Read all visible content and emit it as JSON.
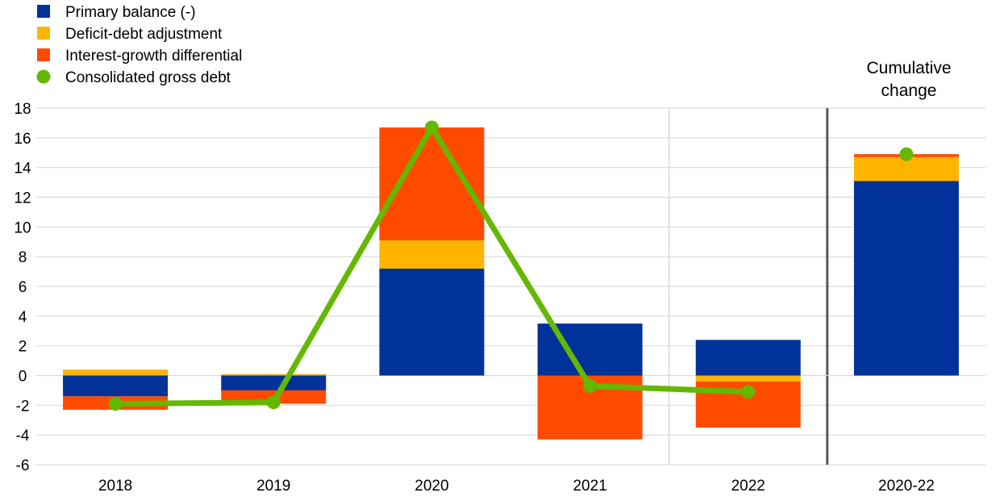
{
  "chart_data": {
    "type": "bar",
    "stacked": true,
    "categories": [
      "2018",
      "2019",
      "2020",
      "2021",
      "2022",
      "2020-22"
    ],
    "yticks": [
      "-6",
      "-4",
      "-2",
      "0",
      "2",
      "4",
      "6",
      "8",
      "10",
      "12",
      "14",
      "16",
      "18"
    ],
    "ylim": [
      -6,
      18
    ],
    "series": [
      {
        "name": "Primary balance (-)",
        "type": "bar",
        "color": "#003299",
        "values": [
          -1.4,
          -1.0,
          7.2,
          3.5,
          2.4,
          13.1
        ]
      },
      {
        "name": "Deficit-debt adjustment",
        "type": "bar",
        "color": "#FFB400",
        "values": [
          0.4,
          0.1,
          1.9,
          0.0,
          -0.4,
          1.6
        ]
      },
      {
        "name": "Interest-growth differential",
        "type": "bar",
        "color": "#FF4B00",
        "values": [
          -0.9,
          -0.9,
          7.6,
          -4.3,
          -3.1,
          0.2
        ]
      },
      {
        "name": "Consolidated gross debt",
        "type": "line",
        "color": "#65B800",
        "values": [
          -1.9,
          -1.8,
          16.7,
          -0.7,
          -1.1,
          14.9
        ]
      }
    ],
    "annotation": {
      "lines": [
        "Cumulative",
        "change"
      ]
    },
    "grid": true,
    "legend_position": "top-left"
  }
}
